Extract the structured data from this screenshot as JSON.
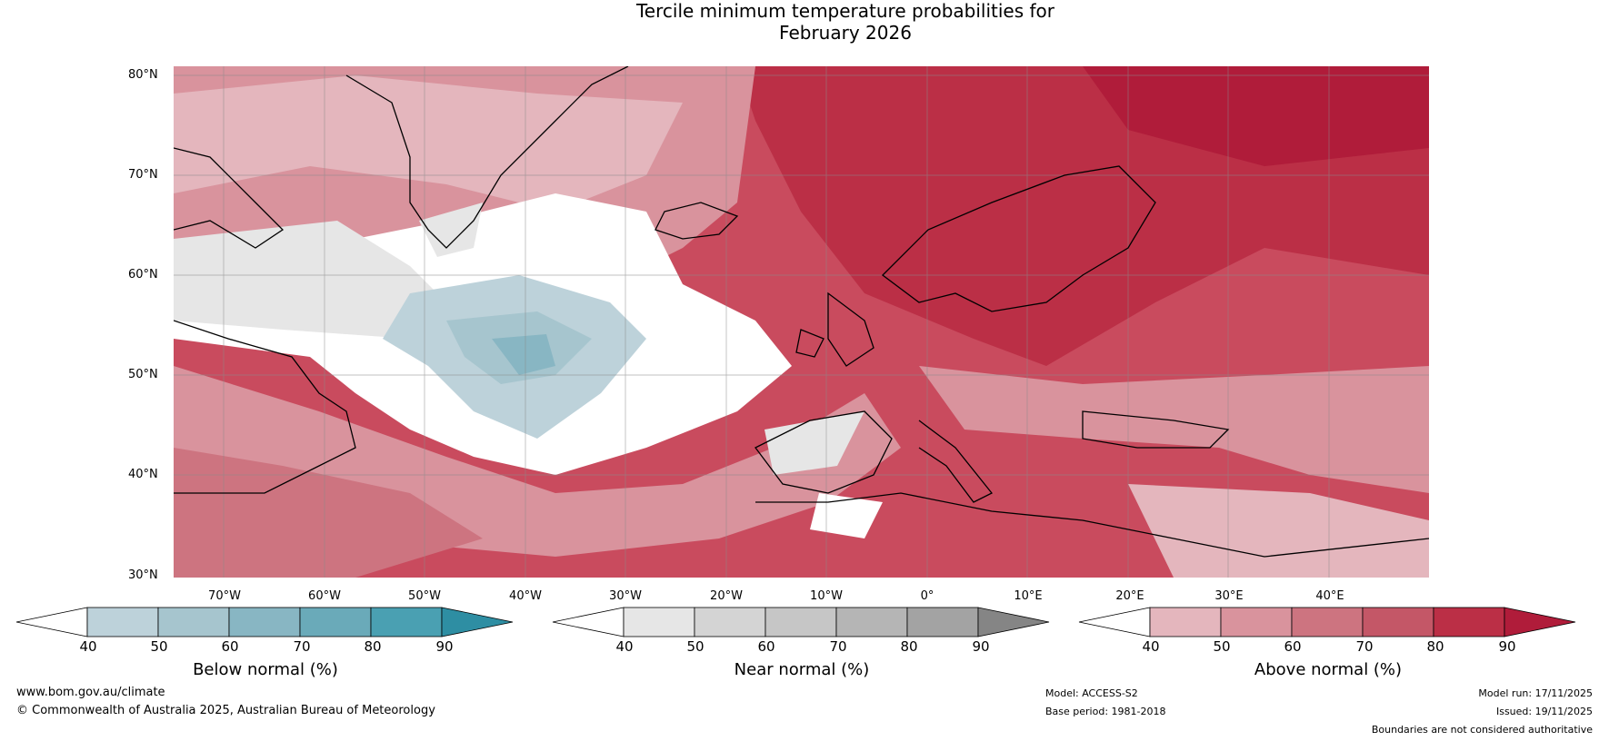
{
  "title": {
    "line1": "Tercile minimum temperature probabilities for",
    "line2": "February 2026"
  },
  "map": {
    "lat_labels": [
      "80°N",
      "70°N",
      "60°N",
      "50°N",
      "40°N",
      "30°N"
    ],
    "lon_labels": [
      "70°W",
      "60°W",
      "50°W",
      "40°W",
      "30°W",
      "20°W",
      "10°W",
      "0°",
      "10°E",
      "20°E",
      "30°E",
      "40°E"
    ],
    "extent": {
      "lon_min": -75,
      "lon_max": 50,
      "lat_min": 30,
      "lat_max": 81
    }
  },
  "legend": {
    "below": {
      "label": "Below normal (%)",
      "ticks": [
        "40",
        "50",
        "60",
        "70",
        "80",
        "90"
      ],
      "colors": [
        "#ffffff",
        "#bdd2da",
        "#a6c5ce",
        "#88b6c3",
        "#6aaab9",
        "#4aa0b2",
        "#2e8ea3"
      ]
    },
    "near": {
      "label": "Near normal (%)",
      "ticks": [
        "40",
        "50",
        "60",
        "70",
        "80",
        "90"
      ],
      "colors": [
        "#ffffff",
        "#e6e6e6",
        "#d4d4d4",
        "#c6c6c6",
        "#b5b5b5",
        "#a3a3a3",
        "#858585"
      ]
    },
    "above": {
      "label": "Above normal (%)",
      "ticks": [
        "40",
        "50",
        "60",
        "70",
        "80",
        "90"
      ],
      "colors": [
        "#ffffff",
        "#e4b6bd",
        "#d9939d",
        "#cd7480",
        "#c45767",
        "#bb2f46",
        "#b01c3a"
      ]
    }
  },
  "footer": {
    "website": "www.bom.gov.au/climate",
    "copyright": "© Commonwealth of Australia 2025, Australian Bureau of Meteorology",
    "model": "Model: ACCESS-S2",
    "base_period": "Base period: 1981-2018",
    "model_run": "Model run: 17/11/2025",
    "issued": "Issued: 19/11/2025",
    "disclaimer": "Boundaries are not considered authoritative"
  }
}
